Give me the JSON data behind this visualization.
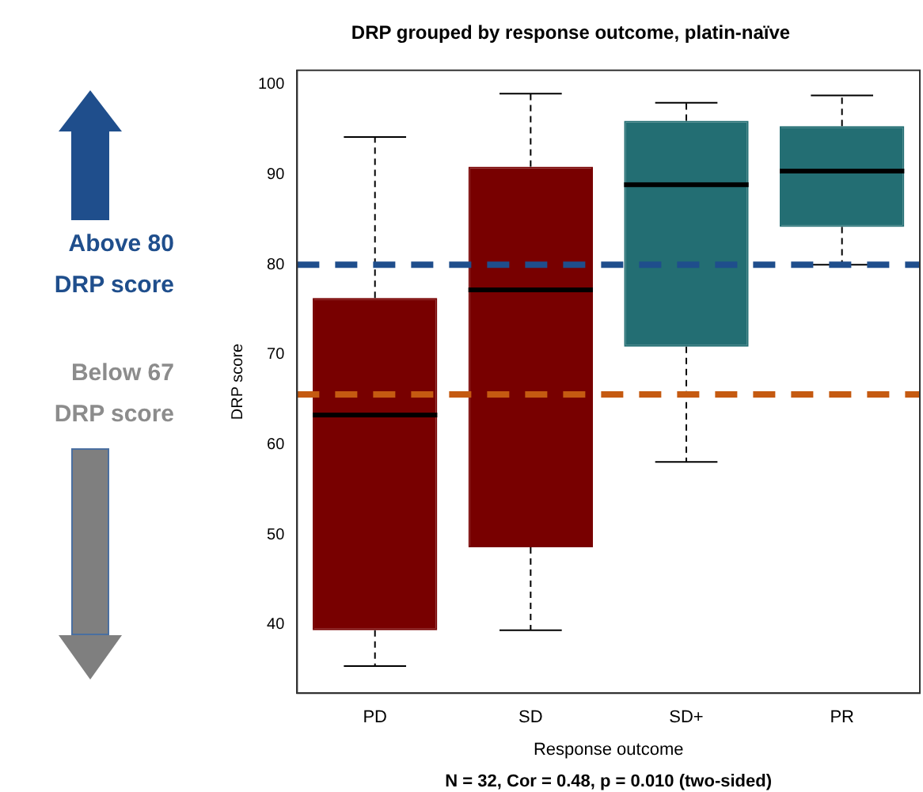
{
  "chart_data": {
    "type": "box",
    "title": "DRP grouped by response outcome, platin-naïve",
    "xlabel": "Response outcome",
    "ylabel": "DRP score",
    "categories": [
      "PD",
      "SD",
      "SD+",
      "PR"
    ],
    "colors": [
      "#780000",
      "#780000",
      "#236e73",
      "#236e73"
    ],
    "boxes": [
      {
        "low": 35.4,
        "q1": 39.4,
        "median": 63.3,
        "q3": 76.3,
        "high": 94.2
      },
      {
        "low": 39.4,
        "q1": 48.6,
        "median": 77.2,
        "q3": 90.9,
        "high": 99.0
      },
      {
        "low": 58.1,
        "q1": 70.9,
        "median": 88.9,
        "q3": 96.0,
        "high": 98.0
      },
      {
        "low": 80.0,
        "q1": 84.2,
        "median": 90.4,
        "q3": 95.4,
        "high": 98.8
      }
    ],
    "ylim": [
      32.4,
      101.6
    ],
    "yticks": [
      40,
      50,
      60,
      70,
      80,
      90,
      100
    ],
    "grid": false,
    "legend": false,
    "ref_lines": [
      {
        "axis": "y",
        "value": 80,
        "label": "Above 80 DRP score",
        "color": "#1f4e8c",
        "line_style": "dashed"
      },
      {
        "axis": "y",
        "value": 65.6,
        "color": "#c55a11",
        "line_style": "dashed"
      }
    ],
    "annotations": [
      "Below 67 DRP score",
      "N = 32, Cor = 0.48, p = 0.010 (two-sided)"
    ]
  }
}
